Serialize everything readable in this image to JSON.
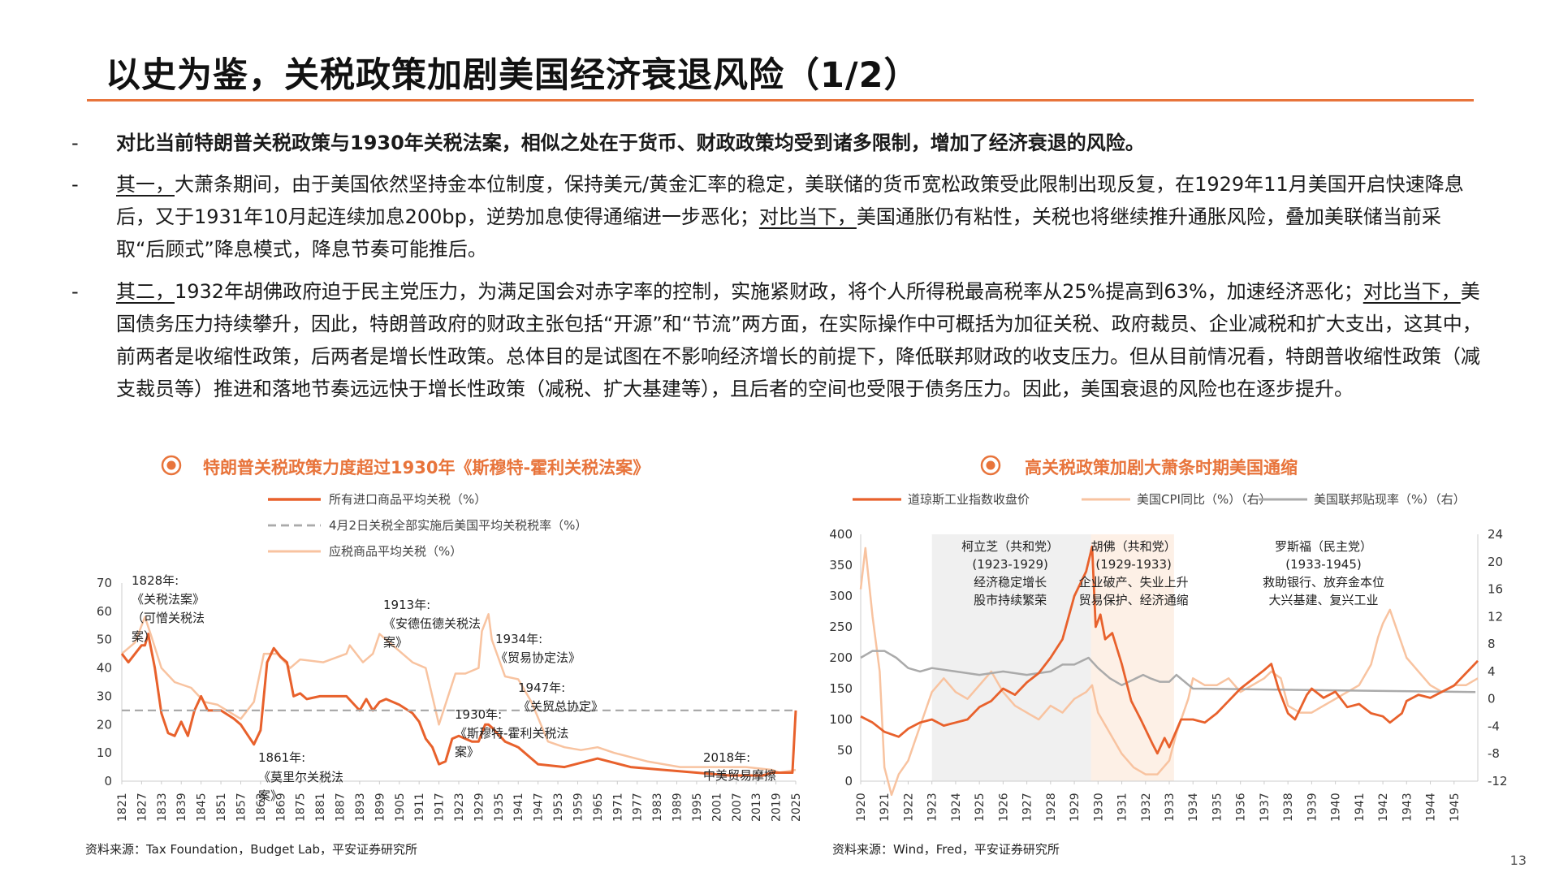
{
  "title": "以史为鉴，关税政策加剧美国经济衰退风险（1/2）",
  "bullets": [
    {
      "dash": "-",
      "parts": [
        {
          "text": "对比当前特朗普关税政策与1930年关税法案，相似之处在于货币、财政政策均受到诸多限制，增加了经济衰退的风险。"
        }
      ]
    },
    {
      "dash": "-",
      "parts": [
        {
          "text": "其一，",
          "u": true
        },
        {
          "text": "大萧条期间，由于美国依然坚持金本位制度，保持美元/黄金汇率的稳定，美联储的货币宽松政策受此限制出现反复，在1929年11月美国开启快速降息后，又于1931年10月起连续加息200bp，逆势加息使得通缩进一步恶化；"
        },
        {
          "text": "对比当下，",
          "u": true
        },
        {
          "text": "美国通胀仍有粘性，关税也将继续推升通胀风险，叠加美联储当前采取“后顾式”降息模式，降息节奏可能推后。"
        }
      ]
    },
    {
      "dash": "-",
      "parts": [
        {
          "text": "其二，",
          "u": true
        },
        {
          "text": "1932年胡佛政府迫于民主党压力，为满足国会对赤字率的控制，实施紧财政，将个人所得税最高税率从25%提高到63%，加速经济恶化；"
        },
        {
          "text": "对比当下，",
          "u": true
        },
        {
          "text": "美国债务压力持续攀升，因此，特朗普政府的财政主张包括“开源”和“节流”两方面，在实际操作中可概括为加征关税、政府裁员、企业减税和扩大支出，这其中，前两者是收缩性政策，后两者是增长性政策。总体目的是试图在不影响经济增长的前提下，降低联邦财政的收支压力。但从目前情况看，特朗普收缩性政策（减支裁员等）推进和落地节奏远远快于增长性政策（减税、扩大基建等），且后者的空间也受限于债务压力。因此，美国衰退的风险也在逐步提升。"
        }
      ]
    }
  ],
  "left_chart": {
    "title": "特朗普关税政策力度超过1930年《斯穆特-霍利关税法案》",
    "source": "资料来源：Tax Foundation，Budget Lab，平安证券研究所"
  },
  "right_chart": {
    "title": "高关税政策加剧大萧条时期美国通缩",
    "source": "资料来源：Wind，Fred，平安证券研究所"
  },
  "page_number": "13",
  "colors": {
    "accent": "#e8743b",
    "dark_orange": "#e8612c",
    "light_orange": "#f8c3a0",
    "gray": "#aaaaaa"
  },
  "chart_data": [
    {
      "type": "line",
      "title": "特朗普关税政策力度超过1930年《斯穆特-霍利关税法案》",
      "categories": [
        "1821",
        "1827",
        "1833",
        "1839",
        "1845",
        "1851",
        "1857",
        "1863",
        "1869",
        "1875",
        "1881",
        "1887",
        "1893",
        "1899",
        "1905",
        "1911",
        "1917",
        "1923",
        "1929",
        "1935",
        "1941",
        "1947",
        "1953",
        "1959",
        "1965",
        "1971",
        "1977",
        "1983",
        "1989",
        "1995",
        "2001",
        "2007",
        "2013",
        "2019",
        "2025"
      ],
      "ylim": [
        0,
        70
      ],
      "yticks": [
        0,
        10,
        20,
        30,
        40,
        50,
        60,
        70
      ],
      "legend": [
        "所有进口商品平均关税（%）",
        "4月2日关税全部实施后美国平均关税税率（%）",
        "应税商品平均关税（%）"
      ],
      "series": [
        {
          "name": "所有进口商品平均关税（%）",
          "x": [
            1821,
            1823,
            1825,
            1827,
            1828,
            1829,
            1831,
            1833,
            1835,
            1837,
            1839,
            1841,
            1843,
            1845,
            1847,
            1851,
            1855,
            1857,
            1861,
            1863,
            1865,
            1867,
            1869,
            1871,
            1873,
            1875,
            1877,
            1881,
            1885,
            1889,
            1893,
            1895,
            1897,
            1899,
            1901,
            1905,
            1909,
            1911,
            1913,
            1915,
            1917,
            1919,
            1921,
            1923,
            1927,
            1929,
            1931,
            1932,
            1933,
            1937,
            1941,
            1947,
            1955,
            1965,
            1975,
            1985,
            1995,
            2005,
            2015,
            2018,
            2020,
            2023,
            2024,
            2025
          ],
          "y": [
            45,
            42,
            45,
            48,
            48,
            52,
            40,
            24,
            17,
            16,
            21,
            16,
            25,
            30,
            25,
            25,
            22,
            20,
            13,
            18,
            42,
            47,
            44,
            42,
            30,
            31,
            29,
            30,
            30,
            30,
            25,
            29,
            25,
            28,
            29,
            27,
            24,
            21,
            15,
            12,
            6,
            7,
            15,
            16,
            14,
            14,
            20,
            20,
            19,
            14,
            12,
            6,
            5,
            8,
            5,
            4,
            3,
            2,
            2,
            3,
            3,
            3,
            3,
            25
          ]
        },
        {
          "name": "4月2日关税全部实施后美国平均关税税率（%）",
          "x": [
            1821,
            2025
          ],
          "y": [
            25,
            25
          ]
        },
        {
          "name": "应税商品平均关税（%）",
          "x": [
            1821,
            1825,
            1828,
            1830,
            1833,
            1837,
            1842,
            1846,
            1850,
            1857,
            1861,
            1864,
            1868,
            1872,
            1875,
            1882,
            1889,
            1890,
            1894,
            1897,
            1899,
            1905,
            1909,
            1913,
            1917,
            1922,
            1925,
            1929,
            1930,
            1932,
            1933,
            1937,
            1941,
            1945,
            1950,
            1955,
            1960,
            1965,
            1970,
            1980,
            1990,
            2000,
            2010,
            2018,
            2020,
            2025
          ],
          "y": [
            45,
            49,
            58,
            51,
            40,
            35,
            33,
            28,
            27,
            22,
            28,
            45,
            45,
            40,
            43,
            42,
            45,
            48,
            42,
            45,
            52,
            46,
            42,
            40,
            20,
            38,
            38,
            40,
            53,
            59,
            50,
            37,
            36,
            28,
            14,
            12,
            11,
            12,
            10,
            7,
            5,
            5,
            5,
            4,
            3,
            4
          ]
        }
      ],
      "annotations": [
        {
          "year": "1828年:",
          "text": "《关税法案》（可憎关税法案）"
        },
        {
          "year": "1861年:",
          "text": "《莫里尔关税法案》"
        },
        {
          "year": "1913年:",
          "text": "《安德伍德关税法案》"
        },
        {
          "year": "1930年:",
          "text": "《斯穆特-霍利关税法案》"
        },
        {
          "year": "1934年:",
          "text": "《贸易协定法》"
        },
        {
          "year": "1947年:",
          "text": "《关贸总协定》"
        },
        {
          "year": "2018年:",
          "text": "中美贸易摩擦"
        }
      ]
    },
    {
      "type": "line",
      "title": "高关税政策加剧大萧条时期美国通缩",
      "categories": [
        "1920",
        "1921",
        "1922",
        "1923",
        "1924",
        "1925",
        "1926",
        "1927",
        "1928",
        "1929",
        "1930",
        "1931",
        "1932",
        "1933",
        "1934",
        "1935",
        "1936",
        "1937",
        "1938",
        "1939",
        "1940",
        "1941",
        "1942",
        "1943",
        "1944",
        "1945"
      ],
      "ylim_left": [
        0,
        400
      ],
      "yticks_left": [
        0,
        50,
        100,
        150,
        200,
        250,
        300,
        350,
        400
      ],
      "ylim_right": [
        -12,
        24
      ],
      "yticks_right": [
        -12,
        -8,
        -4,
        0,
        4,
        8,
        12,
        16,
        20,
        24
      ],
      "legend": [
        "道琼斯工业指数收盘价",
        "美国CPI同比（%）（右）",
        "美国联邦贴现率（%）（右）"
      ],
      "series": [
        {
          "name": "道琼斯工业指数收盘价",
          "axis": "left",
          "x": [
            1920.0,
            1920.5,
            1921.0,
            1921.6,
            1922.0,
            1922.5,
            1923.0,
            1923.5,
            1924.0,
            1924.5,
            1925.0,
            1925.5,
            1926.0,
            1926.5,
            1927.0,
            1927.5,
            1928.0,
            1928.5,
            1929.0,
            1929.5,
            1929.75,
            1929.9,
            1930.1,
            1930.3,
            1930.6,
            1931.0,
            1931.4,
            1931.8,
            1932.3,
            1932.5,
            1932.8,
            1933.0,
            1933.5,
            1934.0,
            1934.5,
            1935.0,
            1935.5,
            1936.0,
            1936.5,
            1937.0,
            1937.3,
            1937.6,
            1938.0,
            1938.3,
            1938.8,
            1939.0,
            1939.5,
            1940.0,
            1940.5,
            1941.0,
            1941.5,
            1942.0,
            1942.3,
            1942.8,
            1943.0,
            1943.5,
            1944.0,
            1944.5,
            1945.0,
            1945.5,
            1946.0
          ],
          "y": [
            105,
            95,
            80,
            72,
            85,
            95,
            100,
            90,
            95,
            100,
            120,
            130,
            150,
            140,
            160,
            175,
            200,
            230,
            300,
            340,
            380,
            250,
            270,
            230,
            240,
            190,
            130,
            100,
            60,
            45,
            70,
            55,
            100,
            100,
            95,
            110,
            130,
            150,
            165,
            180,
            190,
            150,
            110,
            100,
            140,
            150,
            135,
            145,
            120,
            125,
            110,
            105,
            95,
            110,
            130,
            140,
            135,
            145,
            155,
            175,
            195
          ]
        },
        {
          "name": "美国CPI同比（%）（右）",
          "axis": "right",
          "x": [
            1920.0,
            1920.2,
            1920.5,
            1920.8,
            1921.0,
            1921.3,
            1921.6,
            1922.0,
            1922.3,
            1922.7,
            1923.0,
            1923.5,
            1924.0,
            1924.5,
            1925.0,
            1925.5,
            1926.0,
            1926.5,
            1927.0,
            1927.5,
            1928.0,
            1928.5,
            1929.0,
            1929.5,
            1929.75,
            1930.0,
            1930.5,
            1931.0,
            1931.5,
            1932.0,
            1932.5,
            1933.0,
            1933.3,
            1933.8,
            1934.0,
            1934.5,
            1935.0,
            1935.5,
            1936.0,
            1936.5,
            1937.0,
            1937.3,
            1937.7,
            1938.0,
            1938.5,
            1939.0,
            1939.5,
            1940.0,
            1940.5,
            1941.0,
            1941.5,
            1941.8,
            1942.0,
            1942.3,
            1942.7,
            1943.0,
            1943.5,
            1944.0,
            1944.5,
            1945.0,
            1945.5,
            1946.0
          ],
          "y": [
            16,
            22,
            12,
            4,
            -10,
            -14,
            -11,
            -9,
            -6,
            -2,
            1,
            3,
            1,
            0,
            2,
            4,
            1,
            -1,
            -2,
            -3,
            -1,
            -2,
            0,
            1,
            2,
            -2,
            -5,
            -8,
            -10,
            -11,
            -11,
            -9,
            -5,
            0,
            3,
            2,
            2,
            3,
            1,
            2,
            3,
            4,
            3,
            -1,
            -2,
            -2,
            -1,
            0,
            1,
            2,
            5,
            9,
            11,
            13,
            9,
            6,
            4,
            2,
            1,
            2,
            2,
            3
          ]
        },
        {
          "name": "美国联邦贴现率（%）（右）",
          "axis": "right",
          "x": [
            1920.0,
            1920.5,
            1921.0,
            1921.5,
            1922.0,
            1922.5,
            1923.0,
            1924.0,
            1925.0,
            1926.0,
            1927.0,
            1928.0,
            1928.5,
            1929.0,
            1929.6,
            1930.0,
            1930.5,
            1931.0,
            1931.9,
            1932.2,
            1932.6,
            1933.0,
            1933.3,
            1934.0,
            1945.9
          ],
          "y": [
            6,
            7,
            7,
            6,
            4.5,
            4,
            4.5,
            4,
            3.5,
            4,
            3.5,
            4,
            5,
            5,
            6,
            4.5,
            3,
            2,
            3.5,
            3,
            2.5,
            2.5,
            3.5,
            1.5,
            1
          ]
        }
      ],
      "shaded_periods": [
        "1923-1929",
        "1929-1933"
      ],
      "annotations": [
        {
          "line1": "柯立芝（共和党）",
          "line2": "(1923-1929)",
          "line3": "经济稳定增长",
          "line4": "股市持续繁荣"
        },
        {
          "line1": "胡佛（共和党）",
          "line2": "(1929-1933)",
          "line3": "企业破产、失业上升",
          "line4": "贸易保护、经济通缩"
        },
        {
          "line1": "罗斯福（民主党）",
          "line2": "(1933-1945)",
          "line3": "救助银行、放弃金本位",
          "line4": "大兴基建、复兴工业"
        }
      ]
    }
  ]
}
